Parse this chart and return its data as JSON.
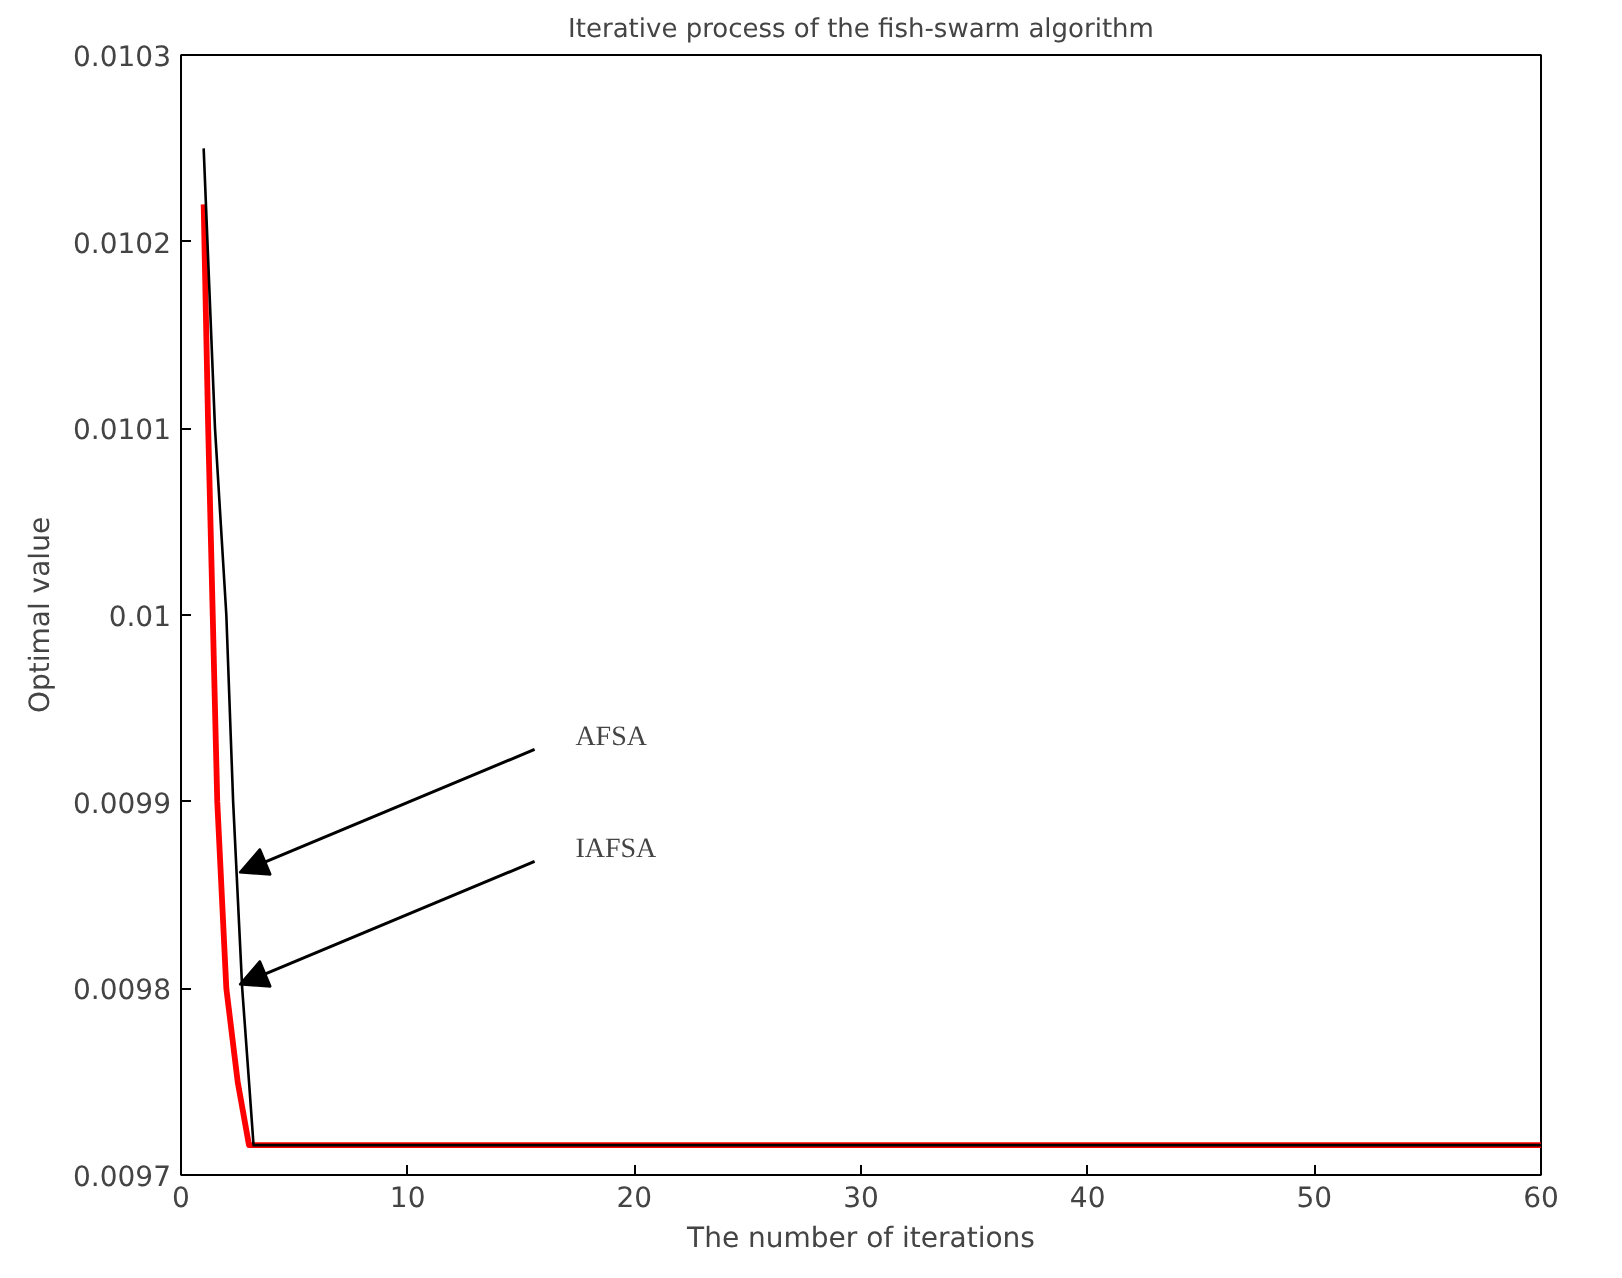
{
  "chart_data": {
    "type": "line",
    "title": "Iterative process of the fish-swarm algorithm",
    "xlabel": "The number of iterations",
    "ylabel": "Optimal value",
    "xlim": [
      0,
      60
    ],
    "xticks": [
      0,
      10,
      20,
      30,
      40,
      50,
      60
    ],
    "ylim": [
      0.0097,
      0.0103
    ],
    "yticks": [
      0.0097,
      0.0098,
      0.0099,
      0.01,
      0.0101,
      0.0102,
      0.0103
    ],
    "line_style": "solid",
    "series": [
      {
        "color": "#000000",
        "x": [
          1,
          1.5,
          2,
          2.3,
          2.7,
          3,
          3.2,
          60
        ],
        "values": [
          0.01025,
          0.0101,
          0.01,
          0.0099,
          0.0098,
          0.00975,
          0.009716,
          0.009716
        ]
      },
      {
        "color": "#ff0000",
        "x": [
          1,
          1.2,
          1.4,
          1.6,
          2,
          2.5,
          3,
          60
        ],
        "values": [
          0.01022,
          0.0101,
          0.01,
          0.0099,
          0.0098,
          0.00975,
          0.009716,
          0.009716
        ]
      }
    ],
    "annotations": [
      "AFSA",
      "IAFSA"
    ]
  }
}
